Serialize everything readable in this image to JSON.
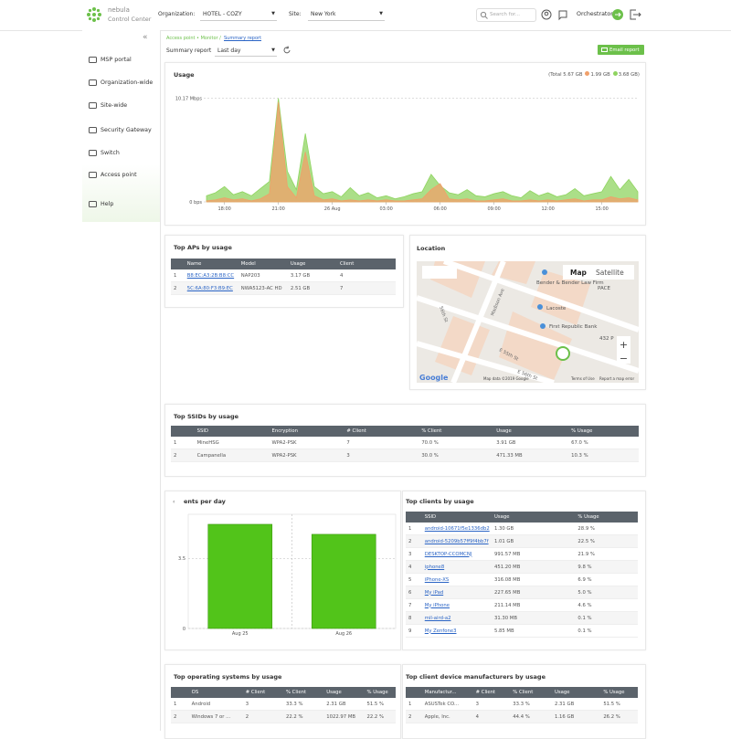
{
  "header": {
    "brand": "nebula",
    "brand_sub": "Control Center",
    "org_label": "Organization:",
    "org": "HOTEL - COZY",
    "site_label": "Site:",
    "site": "New York",
    "search": "Search for...",
    "user": "Orchestrator"
  },
  "sidebar": {
    "items": [
      "MSP portal",
      "Organization-wide",
      "Site-wide",
      "Security Gateway",
      "Switch",
      "Access point",
      "Help"
    ]
  },
  "toolbar": {
    "crumb": "Access point • Monitor /",
    "crumb_link": "Summary report",
    "report_label": "Summary report",
    "period": "Last day",
    "email": "Email report"
  },
  "usage": {
    "total": "(Total 5.67 GB",
    "chart_data": {
      "type": "area",
      "title": "Usage",
      "categories": [
        null,
        null,
        "18:00",
        null,
        null,
        null,
        null,
        null,
        "21:00",
        null,
        null,
        null,
        null,
        null,
        "26 Aug",
        null,
        null,
        null,
        null,
        null,
        "03:00",
        null,
        null,
        null,
        null,
        null,
        "06:00",
        null,
        null,
        null,
        null,
        null,
        "09:00",
        null,
        null,
        null,
        null,
        null,
        "12:00",
        null,
        null,
        null,
        null,
        null,
        "15:00",
        null,
        null,
        null,
        null
      ],
      "series": [
        {
          "name": "1.99 GB",
          "color": "#f0a06a",
          "values": [
            0.1,
            0.2,
            0.4,
            0.2,
            0.3,
            0.1,
            0.3,
            0.8,
            9.8,
            1.5,
            0.4,
            4.9,
            0.6,
            0.2,
            0.3,
            0.1,
            0.2,
            0.1,
            0.2,
            0.1,
            0.2,
            0.1,
            0.1,
            0.2,
            0.3,
            1.2,
            1.8,
            0.3,
            0.2,
            0.3,
            0.1,
            0.1,
            0.2,
            0.3,
            0.1,
            0.1,
            0.2,
            0.1,
            0.2,
            0.1,
            0.2,
            0.3,
            0.1,
            0.2,
            0.2,
            0.5,
            0.3,
            0.4,
            0.2
          ]
        },
        {
          "name": "3.68 GB)",
          "color": "#8fd460",
          "values": [
            0.6,
            0.9,
            1.5,
            0.7,
            1.0,
            0.6,
            1.3,
            2.0,
            10.17,
            3.0,
            1.2,
            6.7,
            1.5,
            0.8,
            1.0,
            0.5,
            1.4,
            0.6,
            0.9,
            0.4,
            0.6,
            0.3,
            0.5,
            0.8,
            1.0,
            2.7,
            1.6,
            0.9,
            0.7,
            1.2,
            0.6,
            0.5,
            0.8,
            1.0,
            0.6,
            0.4,
            1.1,
            0.6,
            0.9,
            0.5,
            0.7,
            1.3,
            0.6,
            0.8,
            1.0,
            2.5,
            1.2,
            2.2,
            1.0
          ]
        }
      ],
      "ylim": [
        0,
        11.2
      ],
      "yticks": [
        {
          "value": 0,
          "label": "0 bps"
        },
        {
          "value": 10.17,
          "label": "10.17 Mbps"
        }
      ]
    }
  },
  "top_aps": {
    "title": "Top APs by usage",
    "columns": [
      "Name",
      "Model",
      "Usage",
      "Client"
    ],
    "rows": [
      [
        "1",
        "B8:EC:A3:2B:B8:CC",
        "NAP203",
        "3.17 GB",
        "4"
      ],
      [
        "2",
        "5C:6A:80:F3:B9:EC",
        "NWA5123-AC HD",
        "2.51 GB",
        "7"
      ]
    ]
  },
  "location": {
    "title": "Location",
    "map": "Map",
    "satellite": "Satellite",
    "places": [
      "Bender & Bender Law Firm",
      "Lacoste",
      "First Republic Bank",
      "PACE",
      "432 P"
    ],
    "streets": [
      "Madison Ave",
      "E 56th St",
      "E 55th St",
      "56th St"
    ],
    "google": "Google",
    "footer": [
      "Map data ©2019 Google",
      "Terms of Use",
      "Report a map error"
    ]
  },
  "top_ssids": {
    "title": "Top SSIDs by usage",
    "columns": [
      "SSID",
      "Encryption",
      "# Client",
      "% Client",
      "Usage",
      "% Usage"
    ],
    "rows": [
      [
        "1",
        "MineHSG",
        "WPA2-PSK",
        "7",
        "70.0 %",
        "3.91 GB",
        "67.0 %"
      ],
      [
        "2",
        "Campanella",
        "WPA2-PSK",
        "3",
        "30.0 %",
        "471.33 MB",
        "10.3 %"
      ]
    ]
  },
  "clients_per_day": {
    "chart_data": {
      "type": "bar",
      "title": "ents per day",
      "categories": [
        "Aug 25",
        "Aug 26"
      ],
      "values": [
        5.2,
        4.7
      ],
      "color": "#52c41a",
      "ylim": [
        0,
        5.7
      ],
      "yticks": [
        0,
        3.5
      ],
      "grid": true
    }
  },
  "top_clients": {
    "title": "Top clients by usage",
    "columns": [
      "SSID",
      "Usage",
      "% Usage"
    ],
    "rows": [
      [
        "1",
        "android-10671f5e1336db2",
        "1.30 GB",
        "28.9 %"
      ],
      [
        "2",
        "android-5209b57ff9f4bb7f",
        "1.01 GB",
        "22.5 %"
      ],
      [
        "3",
        "DESKTOP-CCOMCNJ",
        "991.57 MB",
        "21.9 %"
      ],
      [
        "4",
        "iphone8",
        "451.20 MB",
        "9.8 %"
      ],
      [
        "5",
        "iPhone-XS",
        "316.08 MB",
        "6.9 %"
      ],
      [
        "6",
        "My iPad",
        "227.65 MB",
        "5.0 %"
      ],
      [
        "7",
        "My iPhone",
        "211.14 MB",
        "4.6 %"
      ],
      [
        "8",
        "mil-aird-a2",
        "31.30 MB",
        "0.1 %"
      ],
      [
        "9",
        "My Zenfone3",
        "5.85 MB",
        "0.1 %"
      ]
    ]
  },
  "top_os": {
    "title": "Top operating systems by usage",
    "columns": [
      "OS",
      "# Client",
      "% Client",
      "Usage",
      "% Usage"
    ],
    "rows": [
      [
        "1",
        "Android",
        "3",
        "33.3 %",
        "2.31 GB",
        "51.5 %"
      ],
      [
        "2",
        "Windows 7 or ...",
        "2",
        "22.2 %",
        "1022.97 MB",
        "22.2 %"
      ]
    ]
  },
  "top_manufacturers": {
    "title": "Top client device manufacturers by usage",
    "columns": [
      "Manufactur...",
      "# Client",
      "% Client",
      "Usage",
      "% Usage"
    ],
    "rows": [
      [
        "1",
        "ASUSTek CO...",
        "3",
        "33.3 %",
        "2.31 GB",
        "51.5 %"
      ],
      [
        "2",
        "Apple, Inc.",
        "4",
        "44.4 %",
        "1.16 GB",
        "26.2 %"
      ]
    ]
  }
}
